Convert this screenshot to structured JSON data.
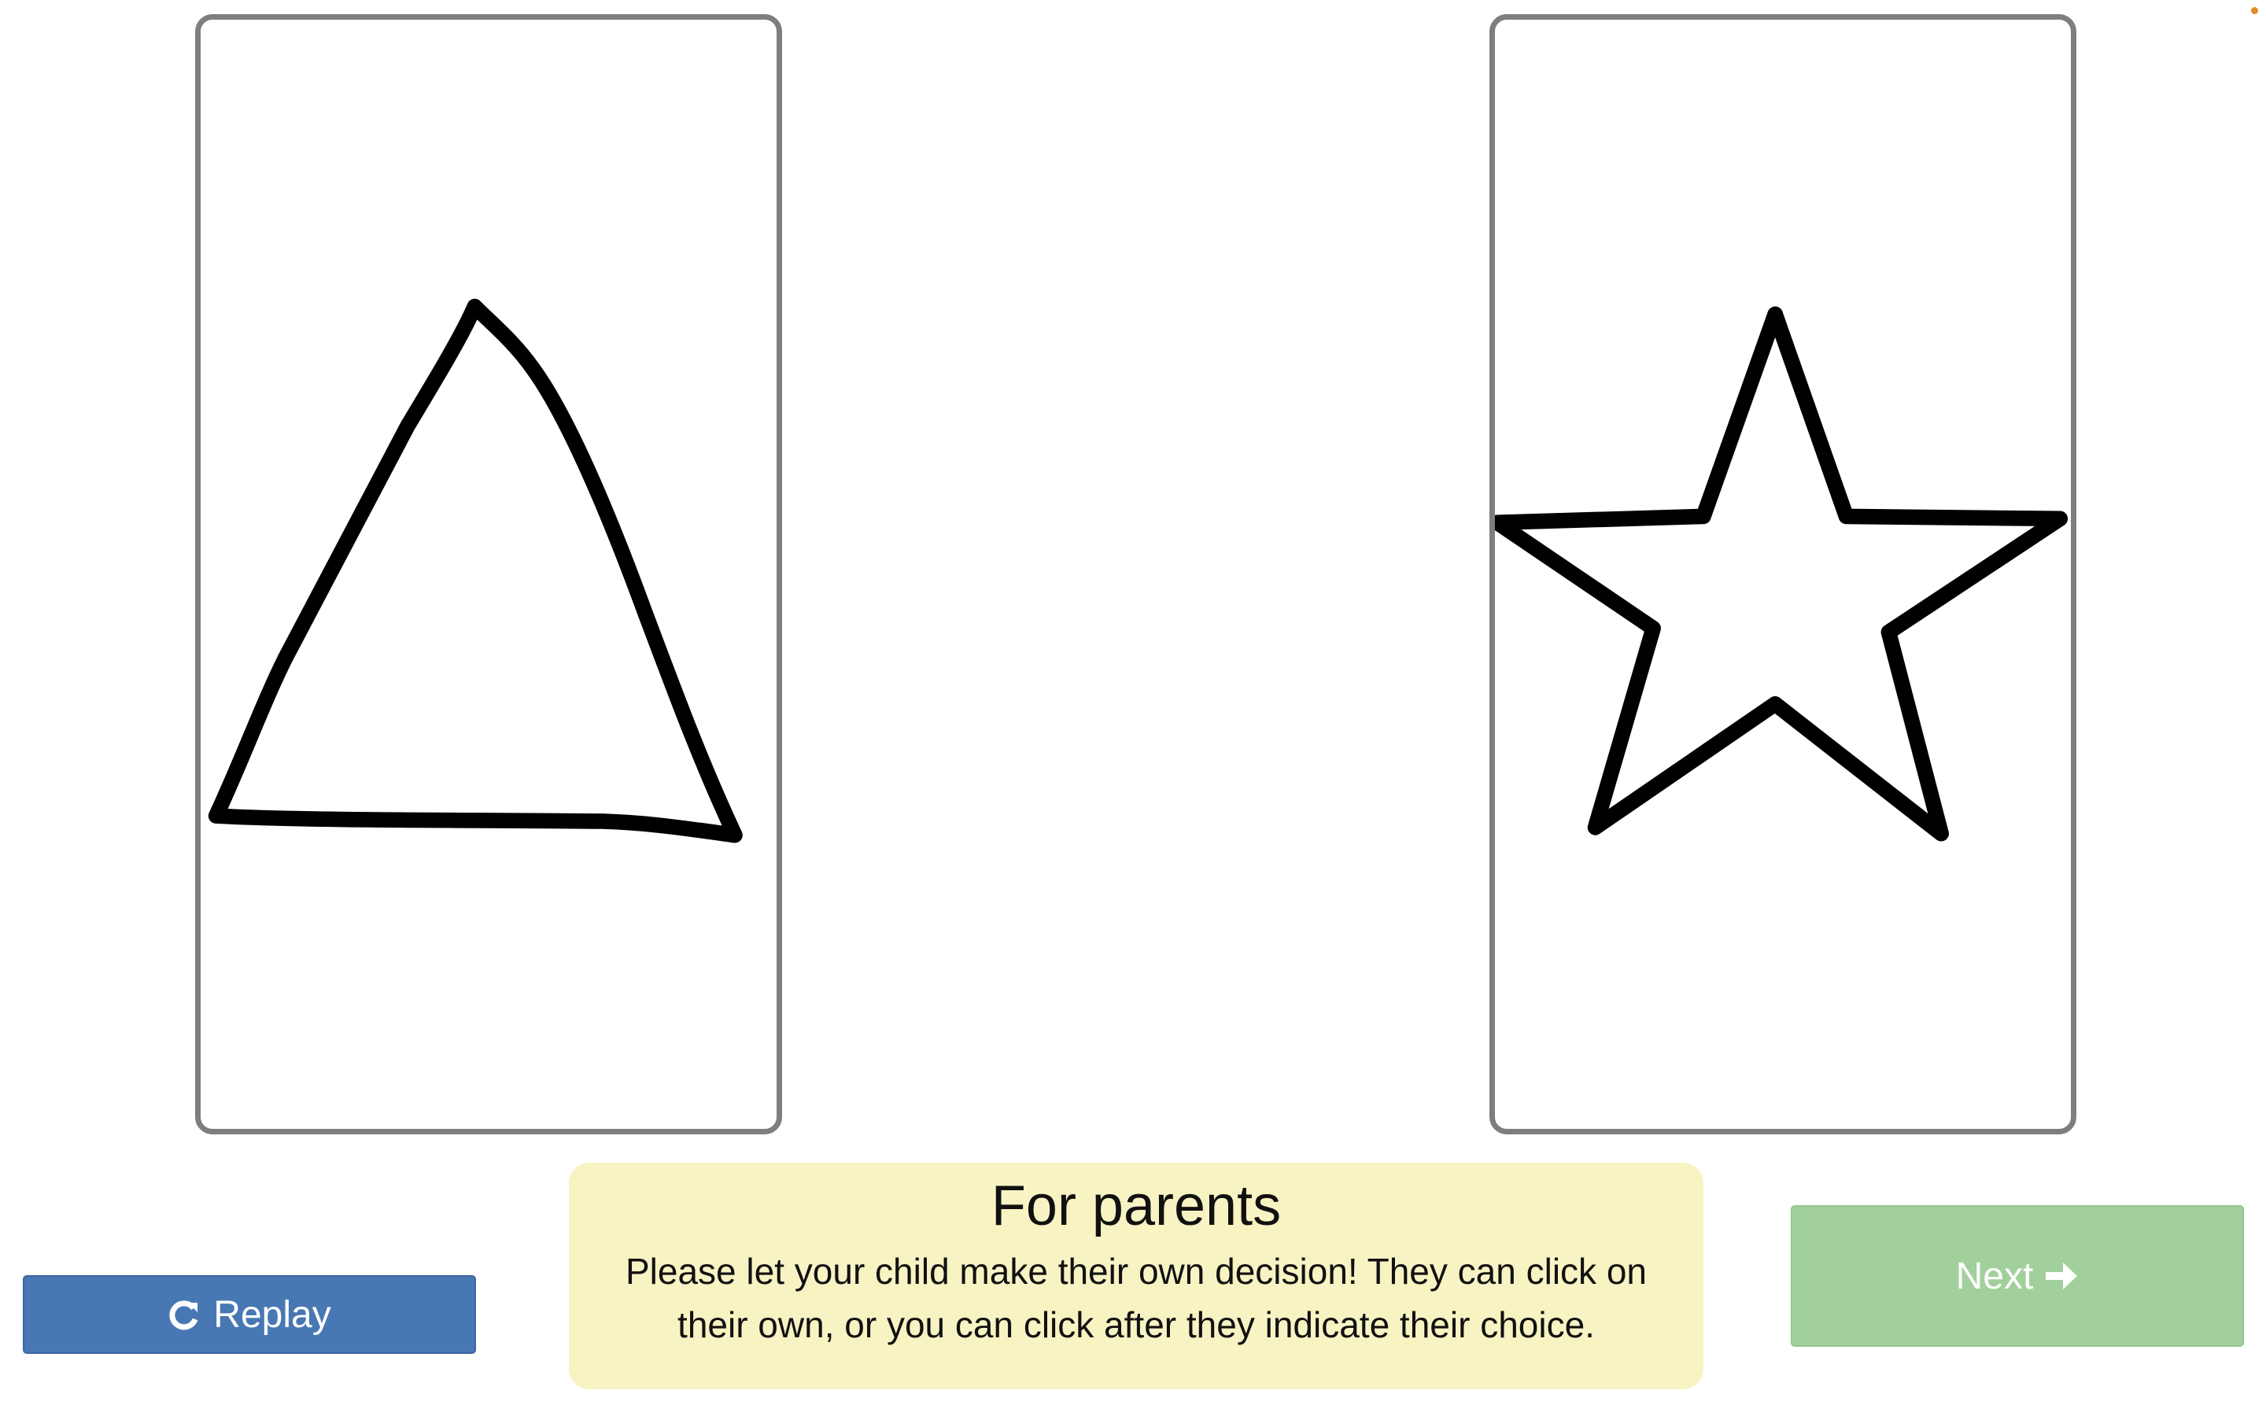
{
  "choices": [
    {
      "shape": "triangle-icon"
    },
    {
      "shape": "star-icon"
    }
  ],
  "parents_panel": {
    "title": "For parents",
    "body": "Please let your child make their own decision! They can click on their own, or you can click after they indicate their choice."
  },
  "buttons": {
    "replay_label": "Replay",
    "next_label": "Next"
  },
  "colors": {
    "replay_bg": "#4878b4",
    "next_bg": "#a1d09c",
    "parents_bg": "#f7f3c3",
    "card_border": "#7e7e7e"
  }
}
